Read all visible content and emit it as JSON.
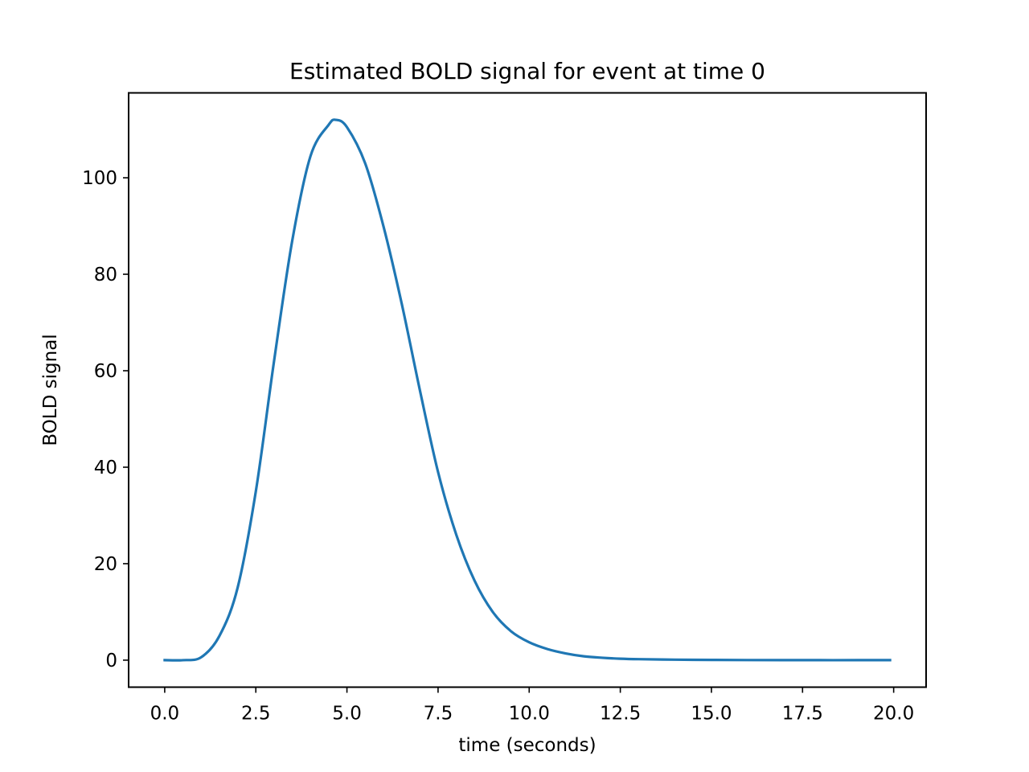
{
  "chart_data": {
    "type": "line",
    "title": "Estimated BOLD signal for event at time 0",
    "xlabel": "time (seconds)",
    "ylabel": "BOLD signal",
    "xlim": [
      -0.99,
      20.89
    ],
    "ylim": [
      -5.6,
      117.6
    ],
    "xticks": [
      0.0,
      2.5,
      5.0,
      7.5,
      10.0,
      12.5,
      15.0,
      17.5,
      20.0
    ],
    "xtick_labels": [
      "0.0",
      "2.5",
      "5.0",
      "7.5",
      "10.0",
      "12.5",
      "15.0",
      "17.5",
      "20.0"
    ],
    "yticks": [
      0,
      20,
      40,
      60,
      80,
      100
    ],
    "ytick_labels": [
      "0",
      "20",
      "40",
      "60",
      "80",
      "100"
    ],
    "grid": false,
    "colors": {
      "line": "#1f77b4",
      "axes": "#000000",
      "background": "#ffffff"
    },
    "series": [
      {
        "x": [
          0.0,
          0.5,
          1.0,
          1.5,
          2.0,
          2.5,
          3.0,
          3.5,
          4.0,
          4.5,
          4.7,
          5.0,
          5.5,
          6.0,
          6.5,
          7.0,
          7.5,
          8.0,
          8.5,
          9.0,
          9.5,
          10.0,
          10.5,
          11.0,
          11.5,
          12.0,
          12.5,
          13.0,
          14.0,
          15.0,
          16.0,
          17.0,
          18.0,
          19.0,
          19.9
        ],
        "y": [
          0.0,
          0.0,
          0.6,
          5.0,
          15.0,
          35.0,
          62.0,
          87.0,
          104.5,
          111.0,
          112.0,
          110.5,
          103.0,
          90.0,
          74.0,
          56.0,
          39.0,
          26.0,
          16.5,
          10.0,
          6.0,
          3.7,
          2.3,
          1.4,
          0.8,
          0.5,
          0.3,
          0.2,
          0.1,
          0.05,
          0.02,
          0.01,
          0.0,
          0.0,
          0.0
        ]
      }
    ]
  }
}
